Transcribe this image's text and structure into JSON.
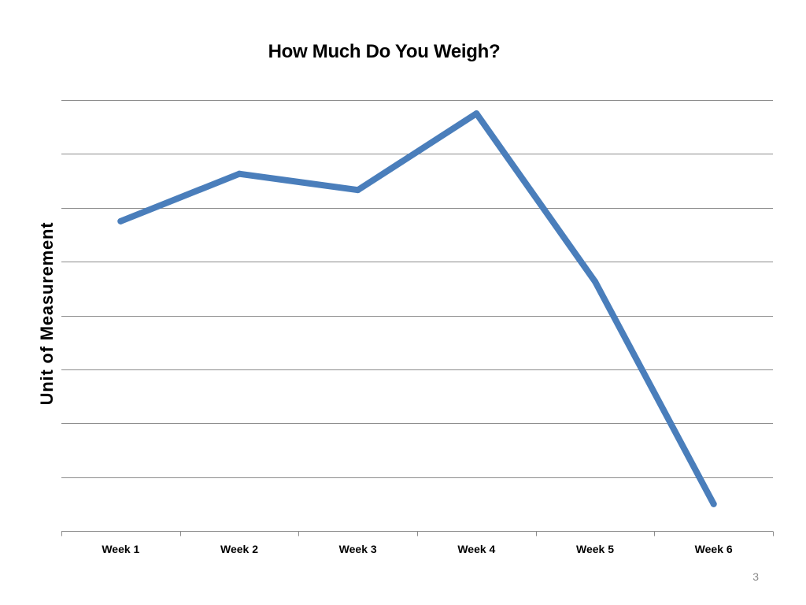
{
  "slide": {
    "number": "3"
  },
  "colors": {
    "series": "#4a7ebb",
    "gridline": "#8c8c8c",
    "axis": "#8c8c8c",
    "text": "#000000"
  },
  "chart_data": {
    "type": "line",
    "title": "How Much Do You Weigh?",
    "xlabel": "",
    "ylabel": "Unit  of  Measurement",
    "categories": [
      "Week 1",
      "Week 2",
      "Week 3",
      "Week 4",
      "Week 5",
      "Week 6"
    ],
    "series": [
      {
        "values": [
          5.75,
          6.63,
          6.33,
          7.75,
          4.63,
          0.5
        ]
      }
    ],
    "ylim": [
      0,
      8
    ],
    "y_tick_labels_shown": false,
    "grid": true,
    "legend": "none"
  }
}
